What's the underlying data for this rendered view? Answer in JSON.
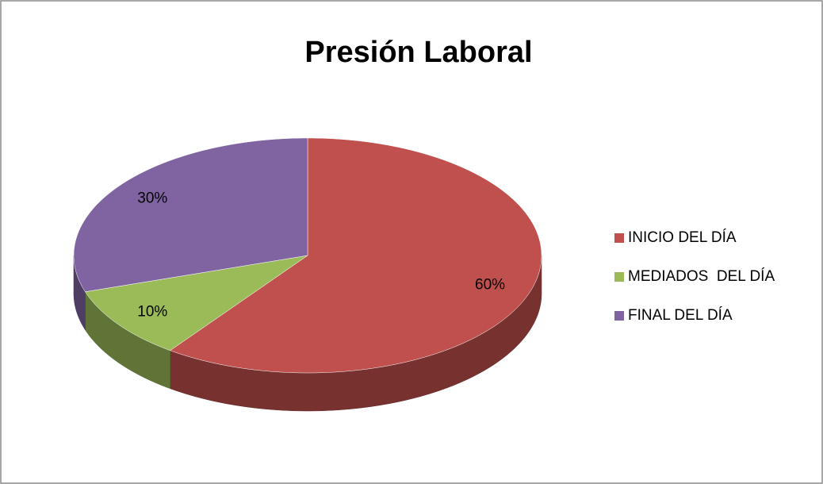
{
  "chart_data": {
    "type": "pie",
    "title": "Presión Laboral",
    "categories": [
      "INICIO DEL DÍA",
      "MEDIADOS  DEL DÍA",
      "FINAL DEL DÍA"
    ],
    "values": [
      60,
      10,
      30
    ],
    "value_labels": [
      "60%",
      "10%",
      "30%"
    ],
    "colors": [
      "#c0504d",
      "#9bbb59",
      "#8064a2"
    ],
    "legend": "right"
  }
}
